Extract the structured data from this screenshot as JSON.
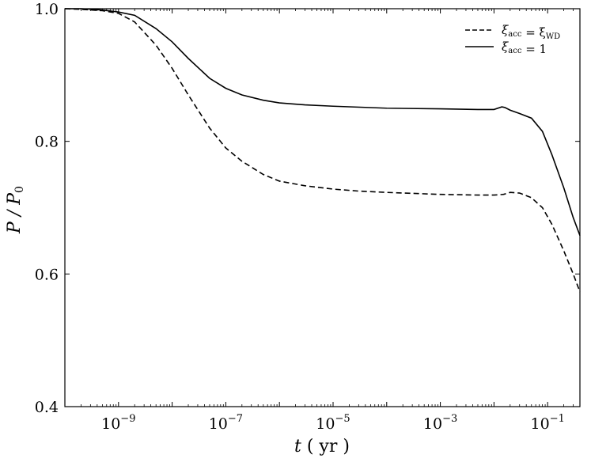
{
  "chart_data": {
    "type": "line",
    "title": "",
    "xlabel": "t ( yr )",
    "ylabel": "P / P0",
    "xscale": "log",
    "xlim": [
      1e-10,
      0.4
    ],
    "ylim": [
      0.4,
      1.0
    ],
    "x_ticks": [
      {
        "value": 1e-09,
        "label": "10−9"
      },
      {
        "value": 1e-07,
        "label": "10−7"
      },
      {
        "value": 1e-05,
        "label": "10−5"
      },
      {
        "value": 0.001,
        "label": "10−3"
      },
      {
        "value": 0.1,
        "label": "10−1"
      }
    ],
    "y_ticks": [
      {
        "value": 0.4,
        "label": "0.4"
      },
      {
        "value": 0.6,
        "label": "0.6"
      },
      {
        "value": 0.8,
        "label": "0.8"
      },
      {
        "value": 1.0,
        "label": "1.0"
      }
    ],
    "grid": false,
    "legend_position": "top-right",
    "series": [
      {
        "name": "ξacc = ξWD",
        "style": "dashed",
        "color": "#000000",
        "points": [
          [
            1e-10,
            1.0
          ],
          [
            2e-10,
            0.999
          ],
          [
            5e-10,
            0.997
          ],
          [
            1e-09,
            0.993
          ],
          [
            2e-09,
            0.98
          ],
          [
            5e-09,
            0.945
          ],
          [
            1e-08,
            0.91
          ],
          [
            2e-08,
            0.87
          ],
          [
            5e-08,
            0.82
          ],
          [
            1e-07,
            0.79
          ],
          [
            2e-07,
            0.77
          ],
          [
            5e-07,
            0.75
          ],
          [
            1e-06,
            0.74
          ],
          [
            3e-06,
            0.733
          ],
          [
            1e-05,
            0.728
          ],
          [
            3e-05,
            0.725
          ],
          [
            0.0001,
            0.723
          ],
          [
            0.001,
            0.72
          ],
          [
            0.005,
            0.719
          ],
          [
            0.01,
            0.719
          ],
          [
            0.015,
            0.72
          ],
          [
            0.02,
            0.723
          ],
          [
            0.03,
            0.722
          ],
          [
            0.05,
            0.715
          ],
          [
            0.08,
            0.7
          ],
          [
            0.12,
            0.675
          ],
          [
            0.2,
            0.635
          ],
          [
            0.3,
            0.6
          ],
          [
            0.4,
            0.573
          ]
        ]
      },
      {
        "name": "ξacc = 1",
        "style": "solid",
        "color": "#000000",
        "points": [
          [
            1e-10,
            1.0
          ],
          [
            2e-10,
            1.0
          ],
          [
            5e-10,
            0.998
          ],
          [
            1e-09,
            0.995
          ],
          [
            2e-09,
            0.99
          ],
          [
            5e-09,
            0.97
          ],
          [
            1e-08,
            0.95
          ],
          [
            2e-08,
            0.925
          ],
          [
            5e-08,
            0.895
          ],
          [
            1e-07,
            0.88
          ],
          [
            2e-07,
            0.87
          ],
          [
            5e-07,
            0.862
          ],
          [
            1e-06,
            0.858
          ],
          [
            3e-06,
            0.855
          ],
          [
            1e-05,
            0.853
          ],
          [
            0.0001,
            0.85
          ],
          [
            0.001,
            0.849
          ],
          [
            0.005,
            0.848
          ],
          [
            0.01,
            0.848
          ],
          [
            0.014,
            0.852
          ],
          [
            0.016,
            0.851
          ],
          [
            0.02,
            0.847
          ],
          [
            0.03,
            0.842
          ],
          [
            0.05,
            0.835
          ],
          [
            0.08,
            0.815
          ],
          [
            0.12,
            0.78
          ],
          [
            0.2,
            0.73
          ],
          [
            0.3,
            0.685
          ],
          [
            0.4,
            0.658
          ]
        ]
      }
    ]
  }
}
